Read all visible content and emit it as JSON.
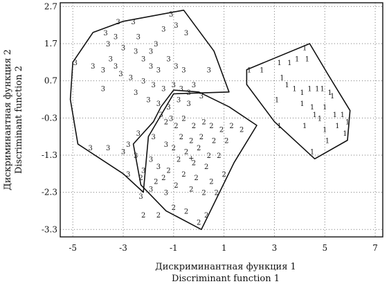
{
  "chart_data": {
    "type": "scatter",
    "xlabel_lines": [
      "Дискриминантная функция 1",
      "Discriminant function 1"
    ],
    "ylabel_lines": [
      "Дискриминантная функция 2",
      "Discriminant function 2"
    ],
    "xlim": [
      -5.5,
      7.3
    ],
    "ylim": [
      -3.5,
      2.8
    ],
    "x_ticks": [
      -5,
      -3,
      -1,
      1,
      3,
      5,
      7
    ],
    "y_ticks": [
      2.7,
      1.7,
      0.7,
      -0.3,
      -1.3,
      -2.3,
      -3.3
    ],
    "grid": true,
    "centroid_marker": "+",
    "centroid": [
      -0.3,
      -1.35
    ],
    "series": [
      {
        "marker": "1",
        "points": [
          [
            4.2,
            1.6
          ],
          [
            3.9,
            1.3
          ],
          [
            3.6,
            1.2
          ],
          [
            4.3,
            1.3
          ],
          [
            2.0,
            1.0
          ],
          [
            2.5,
            1.0
          ],
          [
            3.2,
            1.2
          ],
          [
            3.3,
            0.8
          ],
          [
            3.5,
            0.6
          ],
          [
            3.1,
            0.2
          ],
          [
            3.8,
            0.5
          ],
          [
            4.1,
            0.4
          ],
          [
            4.4,
            0.5
          ],
          [
            4.7,
            0.5
          ],
          [
            4.9,
            0.5
          ],
          [
            5.2,
            0.4
          ],
          [
            4.1,
            0.1
          ],
          [
            4.5,
            0.0
          ],
          [
            5.0,
            0.0
          ],
          [
            5.3,
            0.3
          ],
          [
            4.6,
            -0.2
          ],
          [
            4.8,
            -0.3
          ],
          [
            5.4,
            -0.2
          ],
          [
            5.7,
            -0.2
          ],
          [
            4.2,
            -0.5
          ],
          [
            5.0,
            -0.6
          ],
          [
            5.5,
            -0.5
          ],
          [
            5.9,
            -0.4
          ],
          [
            5.1,
            -0.9
          ],
          [
            5.8,
            -0.7
          ],
          [
            3.2,
            -0.5
          ],
          [
            4.5,
            -1.2
          ]
        ]
      },
      {
        "marker": "2",
        "points": [
          [
            -1.3,
            -0.4
          ],
          [
            -0.9,
            -0.5
          ],
          [
            -0.6,
            -0.3
          ],
          [
            -0.2,
            -0.5
          ],
          [
            0.2,
            -0.4
          ],
          [
            0.5,
            -0.5
          ],
          [
            0.9,
            -0.6
          ],
          [
            1.3,
            -0.5
          ],
          [
            1.7,
            -0.6
          ],
          [
            -0.7,
            -0.8
          ],
          [
            -0.3,
            -0.9
          ],
          [
            0.1,
            -0.8
          ],
          [
            0.6,
            -0.9
          ],
          [
            1.1,
            -0.9
          ],
          [
            -1.0,
            -1.1
          ],
          [
            -0.5,
            -1.2
          ],
          [
            0.0,
            -1.1
          ],
          [
            0.4,
            -1.3
          ],
          [
            0.8,
            -1.3
          ],
          [
            -0.8,
            -1.4
          ],
          [
            -0.2,
            -1.5
          ],
          [
            0.3,
            -1.6
          ],
          [
            -1.2,
            -1.7
          ],
          [
            -0.6,
            -1.8
          ],
          [
            -0.1,
            -1.9
          ],
          [
            0.5,
            -2.0
          ],
          [
            1.0,
            -1.8
          ],
          [
            -0.9,
            -2.1
          ],
          [
            -0.3,
            -2.2
          ],
          [
            0.2,
            -2.3
          ],
          [
            0.7,
            -2.3
          ],
          [
            -1.7,
            -2.0
          ],
          [
            -2.2,
            -2.9
          ],
          [
            -1.6,
            -2.9
          ],
          [
            -1.0,
            -2.7
          ],
          [
            -0.5,
            -2.8
          ],
          [
            0.0,
            -3.1
          ],
          [
            0.3,
            -2.9
          ],
          [
            -2.3,
            -1.9
          ],
          [
            -1.4,
            -1.9
          ]
        ]
      },
      {
        "marker": "3",
        "points": [
          [
            -3.2,
            2.3
          ],
          [
            -2.6,
            2.3
          ],
          [
            -3.7,
            2.0
          ],
          [
            -3.3,
            1.9
          ],
          [
            -2.4,
            1.9
          ],
          [
            -3.6,
            1.7
          ],
          [
            -3.0,
            1.6
          ],
          [
            -2.5,
            1.5
          ],
          [
            -3.5,
            1.3
          ],
          [
            -3.3,
            1.1
          ],
          [
            -4.9,
            1.2
          ],
          [
            -4.2,
            1.1
          ],
          [
            -3.8,
            1.0
          ],
          [
            -3.1,
            0.9
          ],
          [
            -2.7,
            0.8
          ],
          [
            -2.2,
            1.3
          ],
          [
            -1.9,
            1.1
          ],
          [
            -1.6,
            1.0
          ],
          [
            -1.2,
            1.3
          ],
          [
            -0.9,
            1.1
          ],
          [
            -0.6,
            1.0
          ],
          [
            -2.2,
            0.7
          ],
          [
            -1.8,
            0.6
          ],
          [
            -1.4,
            0.5
          ],
          [
            -1.0,
            0.6
          ],
          [
            -0.7,
            0.5
          ],
          [
            -0.4,
            0.4
          ],
          [
            -3.8,
            0.5
          ],
          [
            -2.5,
            0.4
          ],
          [
            -2.0,
            0.2
          ],
          [
            -1.6,
            0.1
          ],
          [
            -1.2,
            0.0
          ],
          [
            -0.8,
            0.2
          ],
          [
            -0.4,
            0.1
          ],
          [
            -1.5,
            -0.2
          ],
          [
            -1.1,
            -0.3
          ],
          [
            -2.4,
            -0.7
          ],
          [
            -1.8,
            -0.8
          ],
          [
            -1.3,
            -1.0
          ],
          [
            -4.3,
            -1.1
          ],
          [
            -3.6,
            -1.1
          ],
          [
            -3.0,
            -1.2
          ],
          [
            -2.5,
            -1.3
          ],
          [
            -1.9,
            -1.4
          ],
          [
            -1.6,
            -1.6
          ],
          [
            -2.2,
            -1.7
          ],
          [
            -2.8,
            -1.8
          ],
          [
            -1.9,
            -2.2
          ],
          [
            -1.3,
            -2.3
          ],
          [
            -2.3,
            -2.4
          ],
          [
            -1.1,
            2.5
          ],
          [
            -1.4,
            2.1
          ],
          [
            -0.9,
            2.2
          ],
          [
            -0.5,
            2.0
          ],
          [
            -1.7,
            1.7
          ],
          [
            -1.9,
            1.5
          ],
          [
            0.4,
            1.0
          ],
          [
            0.1,
            0.3
          ],
          [
            -0.2,
            0.6
          ],
          [
            -2.8,
            -1.0
          ]
        ]
      }
    ],
    "hulls": [
      {
        "group": "1",
        "points": [
          [
            1.9,
            1.0
          ],
          [
            4.4,
            1.7
          ],
          [
            5.1,
            0.9
          ],
          [
            6.0,
            -0.1
          ],
          [
            5.9,
            -0.9
          ],
          [
            4.6,
            -1.4
          ],
          [
            3.0,
            -0.4
          ],
          [
            1.9,
            0.6
          ]
        ]
      },
      {
        "group": "2",
        "points": [
          [
            -1.5,
            0.0
          ],
          [
            -1.0,
            0.45
          ],
          [
            0.0,
            0.4
          ],
          [
            1.2,
            0.0
          ],
          [
            2.3,
            -0.5
          ],
          [
            1.4,
            -1.5
          ],
          [
            0.1,
            -3.3
          ],
          [
            -1.3,
            -2.8
          ],
          [
            -2.3,
            -2.1
          ],
          [
            -2.6,
            -1.0
          ],
          [
            -1.8,
            -0.4
          ]
        ]
      },
      {
        "group": "3",
        "points": [
          [
            -5.0,
            1.2
          ],
          [
            -4.2,
            2.0
          ],
          [
            -3.0,
            2.3
          ],
          [
            -0.6,
            2.6
          ],
          [
            0.6,
            1.5
          ],
          [
            1.2,
            0.4
          ],
          [
            -1.0,
            0.35
          ],
          [
            -2.0,
            -0.8
          ],
          [
            -2.2,
            -2.3
          ],
          [
            -3.0,
            -1.8
          ],
          [
            -4.8,
            -1.0
          ],
          [
            -5.1,
            0.2
          ]
        ]
      }
    ]
  }
}
